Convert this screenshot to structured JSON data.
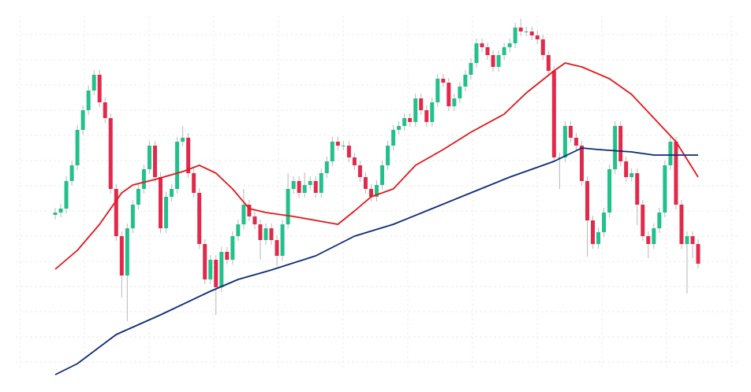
{
  "chart_data": {
    "type": "candlestick",
    "up_color": "#22c08a",
    "down_color": "#e2294b",
    "wick_color": "#b8b8b8",
    "grid": true,
    "ylim": [
      18,
      478
    ],
    "open": [
      225,
      228,
      233,
      268,
      288,
      333,
      358,
      383,
      403,
      368,
      348,
      258,
      198,
      148,
      208,
      238,
      258,
      283,
      313,
      273,
      208,
      248,
      258,
      318,
      323,
      278,
      253,
      188,
      143,
      168,
      133,
      178,
      168,
      198,
      213,
      238,
      223,
      213,
      193,
      208,
      193,
      173,
      213,
      258,
      268,
      253,
      263,
      268,
      253,
      278,
      293,
      318,
      313,
      313,
      298,
      288,
      273,
      258,
      248,
      263,
      288,
      313,
      333,
      338,
      348,
      343,
      373,
      358,
      343,
      368,
      398,
      393,
      363,
      373,
      388,
      403,
      418,
      443,
      438,
      428,
      413,
      428,
      438,
      443,
      463,
      458,
      458,
      453,
      448,
      428,
      408,
      298,
      298,
      338,
      323,
      313,
      268,
      218,
      188,
      203,
      228,
      283,
      338,
      293,
      273,
      278,
      238,
      198,
      188,
      208,
      228,
      288,
      318,
      238,
      188,
      198,
      188
    ],
    "high": [
      234,
      239,
      274,
      294,
      339,
      364,
      389,
      409,
      409,
      374,
      354,
      264,
      204,
      214,
      244,
      264,
      289,
      319,
      319,
      279,
      254,
      264,
      324,
      338,
      329,
      284,
      259,
      194,
      174,
      174,
      184,
      184,
      204,
      219,
      258,
      244,
      229,
      219,
      214,
      214,
      199,
      219,
      278,
      274,
      274,
      279,
      274,
      274,
      284,
      299,
      324,
      324,
      319,
      319,
      304,
      294,
      279,
      264,
      269,
      294,
      319,
      339,
      344,
      354,
      354,
      379,
      379,
      364,
      374,
      404,
      404,
      399,
      379,
      394,
      409,
      424,
      449,
      449,
      444,
      434,
      434,
      444,
      449,
      469,
      474,
      464,
      464,
      459,
      454,
      434,
      414,
      304,
      344,
      344,
      329,
      319,
      274,
      224,
      209,
      234,
      289,
      344,
      344,
      299,
      284,
      284,
      244,
      204,
      214,
      234,
      294,
      324,
      324,
      244,
      204,
      204,
      194
    ],
    "low": [
      219,
      222,
      227,
      262,
      282,
      327,
      352,
      377,
      362,
      342,
      252,
      192,
      120,
      90,
      202,
      232,
      252,
      277,
      267,
      202,
      202,
      242,
      252,
      312,
      272,
      247,
      182,
      137,
      137,
      98,
      127,
      162,
      162,
      192,
      207,
      217,
      207,
      168,
      187,
      187,
      160,
      167,
      207,
      252,
      247,
      247,
      257,
      247,
      247,
      272,
      287,
      307,
      307,
      292,
      282,
      267,
      252,
      242,
      242,
      257,
      282,
      307,
      327,
      332,
      337,
      337,
      352,
      337,
      337,
      362,
      387,
      357,
      357,
      367,
      382,
      397,
      412,
      432,
      422,
      407,
      407,
      422,
      432,
      437,
      452,
      452,
      447,
      442,
      422,
      402,
      292,
      258,
      292,
      317,
      307,
      262,
      172,
      182,
      182,
      197,
      222,
      277,
      287,
      267,
      267,
      212,
      192,
      170,
      182,
      202,
      222,
      282,
      232,
      182,
      125,
      170,
      157
    ],
    "close": [
      228,
      233,
      268,
      288,
      333,
      358,
      383,
      403,
      368,
      348,
      258,
      198,
      148,
      208,
      238,
      258,
      283,
      313,
      273,
      208,
      248,
      258,
      318,
      323,
      278,
      253,
      188,
      143,
      168,
      133,
      178,
      168,
      198,
      213,
      238,
      223,
      213,
      193,
      208,
      193,
      173,
      213,
      258,
      268,
      253,
      263,
      268,
      253,
      278,
      293,
      318,
      313,
      313,
      298,
      288,
      273,
      258,
      248,
      263,
      288,
      313,
      333,
      338,
      348,
      343,
      373,
      358,
      343,
      368,
      398,
      393,
      363,
      373,
      388,
      403,
      418,
      443,
      438,
      428,
      413,
      428,
      438,
      443,
      463,
      458,
      458,
      453,
      448,
      428,
      408,
      298,
      298,
      338,
      323,
      313,
      268,
      218,
      188,
      203,
      228,
      283,
      338,
      293,
      273,
      278,
      238,
      198,
      188,
      208,
      228,
      288,
      318,
      238,
      188,
      198,
      188,
      163
    ],
    "series": [
      {
        "color": "#e3161b",
        "x": [
          0,
          4,
          8,
          12,
          14,
          18,
          23,
          26,
          29,
          32,
          35,
          38,
          43,
          47,
          51,
          54,
          57,
          61,
          65,
          70,
          75,
          81,
          85,
          90,
          92,
          95,
          100,
          104,
          108,
          112,
          116
        ],
        "values": [
          156,
          180,
          213,
          253,
          263,
          270,
          280,
          288,
          278,
          258,
          233,
          228,
          223,
          218,
          213,
          230,
          248,
          258,
          288,
          308,
          330,
          353,
          380,
          408,
          418,
          413,
          398,
          378,
          348,
          318,
          273
        ]
      },
      {
        "color": "#0d2a7a",
        "x": [
          0,
          4,
          11,
          19,
          28,
          33,
          39,
          47,
          54,
          61,
          68,
          75,
          82,
          90,
          95,
          98,
          104,
          108,
          116
        ],
        "values": [
          22,
          36,
          73,
          98,
          128,
          143,
          155,
          173,
          198,
          213,
          233,
          253,
          273,
          293,
          310,
          308,
          305,
          301,
          301
        ]
      }
    ]
  }
}
